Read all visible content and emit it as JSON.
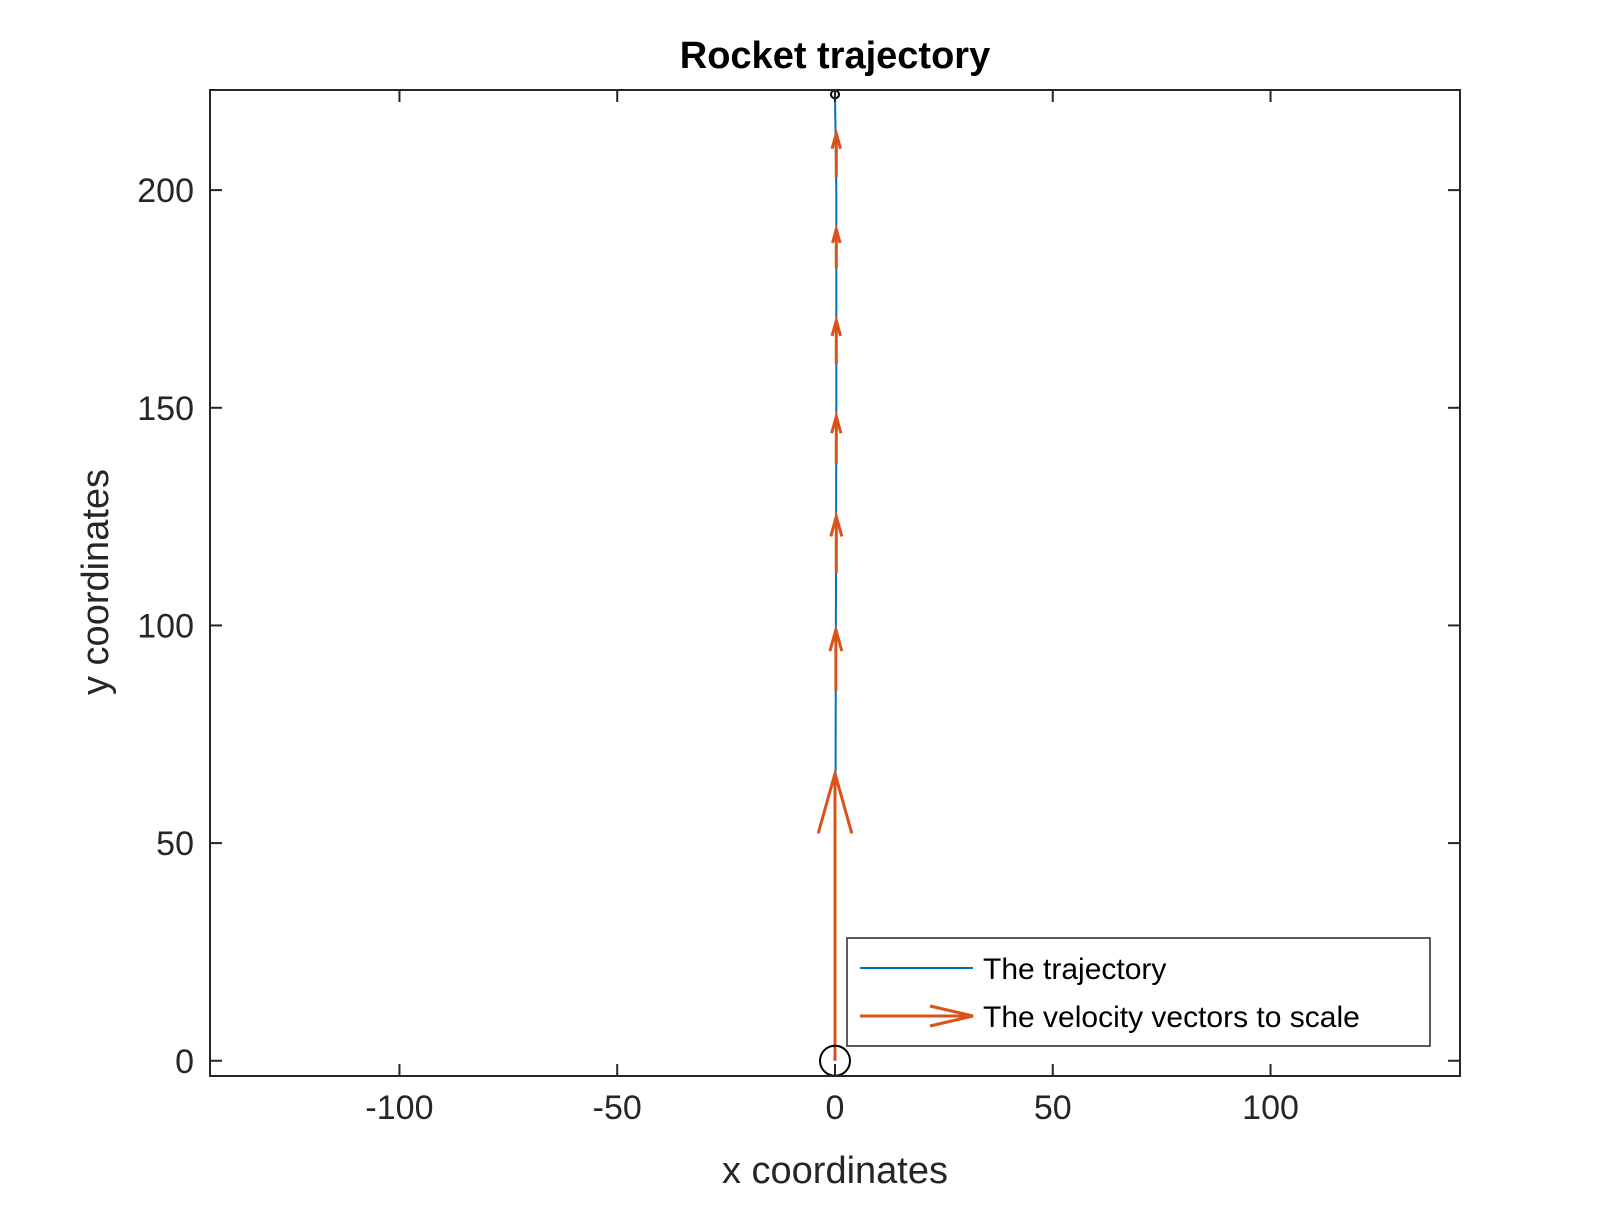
{
  "chart_data": {
    "type": "line",
    "title": "Rocket trajectory",
    "xlabel": "x coordinates",
    "ylabel": "y coordinates",
    "xlim": [
      -143.5,
      143.5
    ],
    "ylim": [
      -3.5,
      223
    ],
    "xticks": [
      -100,
      -50,
      0,
      50,
      100
    ],
    "yticks": [
      0,
      50,
      100,
      150,
      200
    ],
    "grid": false,
    "legend_position": "bottom-right",
    "colors": {
      "trajectory": "#0072BD",
      "velocity": "#D95319",
      "axes": "#262626",
      "markers": "#000000"
    },
    "series": [
      {
        "name": "The trajectory",
        "kind": "line",
        "points": [
          [
            0,
            0
          ],
          [
            0.1,
            50
          ],
          [
            0.2,
            100
          ],
          [
            0.3,
            150
          ],
          [
            0.3,
            200
          ],
          [
            0,
            222
          ]
        ]
      },
      {
        "name": "The velocity vectors to scale",
        "kind": "quiver",
        "vectors": [
          {
            "x": 0,
            "y": 0,
            "dx": 0,
            "dy": 66
          },
          {
            "x": 0.2,
            "y": 85,
            "dx": 0,
            "dy": 14
          },
          {
            "x": 0.3,
            "y": 112,
            "dx": 0,
            "dy": 13
          },
          {
            "x": 0.3,
            "y": 137,
            "dx": 0,
            "dy": 11
          },
          {
            "x": 0.3,
            "y": 160,
            "dx": 0,
            "dy": 10
          },
          {
            "x": 0.3,
            "y": 182,
            "dx": 0,
            "dy": 9
          },
          {
            "x": 0.3,
            "y": 203,
            "dx": 0,
            "dy": 10
          }
        ]
      }
    ],
    "markers": [
      {
        "label": "start",
        "x": 0,
        "y": 0,
        "size": "large",
        "shape": "circle"
      },
      {
        "label": "end",
        "x": 0,
        "y": 222,
        "size": "small",
        "shape": "circle"
      }
    ]
  }
}
